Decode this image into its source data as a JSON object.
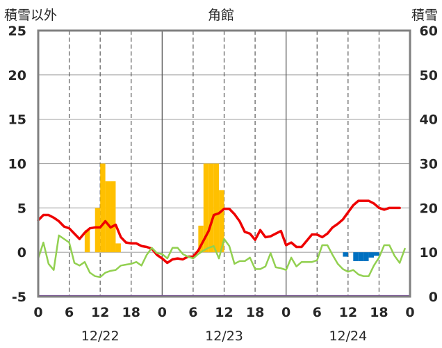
{
  "chart_data": {
    "type": "bar+line",
    "title": "角館",
    "ylabel": "積雪以外",
    "ylabel_right": "積雪",
    "ylim": [
      -5,
      25
    ],
    "ylim_right": [
      0,
      60
    ],
    "y_ticks": [
      "25",
      "20",
      "15",
      "10",
      "5",
      "0",
      "-5"
    ],
    "y_ticks_right": [
      "60",
      "50",
      "40",
      "30",
      "20",
      "10",
      "0"
    ],
    "x_range_hours": [
      0,
      72
    ],
    "x_tick_hours": [
      0,
      6,
      12,
      18,
      24,
      30,
      36,
      42,
      48,
      54,
      60,
      66,
      72
    ],
    "x_tick_labels": [
      "0",
      "6",
      "12",
      "18",
      "0",
      "6",
      "12",
      "18",
      "0",
      "6",
      "12",
      "18",
      "0"
    ],
    "day_labels": [
      "12/22",
      "12/23",
      "12/24"
    ],
    "colors": {
      "red": "#ee0000",
      "green": "#92d050",
      "gold": "#ffc000",
      "blue": "#0070c0",
      "purple": "#7030a0",
      "frame": "#808080"
    },
    "series": [
      {
        "kind": "bar",
        "color": "#ffc000",
        "bars": [
          {
            "hour": 10,
            "value": 2.5
          },
          {
            "hour": 11,
            "value": 0
          },
          {
            "hour": 12,
            "value": 5
          },
          {
            "hour": 13,
            "value": 10
          },
          {
            "hour": 14,
            "value": 8
          },
          {
            "hour": 15,
            "value": 8
          },
          {
            "hour": 16,
            "value": 1
          },
          {
            "hour": 32,
            "value": 3
          },
          {
            "hour": 33,
            "value": 10
          },
          {
            "hour": 34,
            "value": 10
          },
          {
            "hour": 35,
            "value": 10
          },
          {
            "hour": 36,
            "value": 7
          }
        ]
      },
      {
        "kind": "bar",
        "color": "#0070c0",
        "bars": [
          {
            "hour": 60,
            "value": -0.5
          },
          {
            "hour": 62,
            "value": -1
          },
          {
            "hour": 63,
            "value": -1
          },
          {
            "hour": 64,
            "value": -1
          },
          {
            "hour": 65,
            "value": -0.6
          },
          {
            "hour": 66,
            "value": -0.4
          }
        ]
      },
      {
        "kind": "line",
        "color": "#ee0000",
        "points": [
          [
            0,
            3.6
          ],
          [
            1,
            4.2
          ],
          [
            2,
            4.2
          ],
          [
            3,
            3.9
          ],
          [
            4,
            3.5
          ],
          [
            5,
            2.9
          ],
          [
            6,
            2.7
          ],
          [
            7,
            2.1
          ],
          [
            8,
            1.5
          ],
          [
            9,
            2.2
          ],
          [
            10,
            2.7
          ],
          [
            11,
            2.8
          ],
          [
            12,
            2.8
          ],
          [
            13,
            3.5
          ],
          [
            14,
            2.8
          ],
          [
            15,
            3.1
          ],
          [
            16,
            1.7
          ],
          [
            17,
            1.1
          ],
          [
            18,
            1.0
          ],
          [
            19,
            1.0
          ],
          [
            20,
            0.7
          ],
          [
            21,
            0.6
          ],
          [
            22,
            0.4
          ],
          [
            23,
            -0.3
          ],
          [
            24,
            -0.7
          ],
          [
            25,
            -1.2
          ],
          [
            26,
            -0.8
          ],
          [
            27,
            -0.7
          ],
          [
            28,
            -0.8
          ],
          [
            29,
            -0.5
          ],
          [
            30,
            -0.5
          ],
          [
            31,
            0.2
          ],
          [
            32,
            1.3
          ],
          [
            33,
            2.4
          ],
          [
            34,
            4.2
          ],
          [
            35,
            4.4
          ],
          [
            36,
            4.9
          ],
          [
            37,
            4.9
          ],
          [
            38,
            4.3
          ],
          [
            39,
            3.5
          ],
          [
            40,
            2.3
          ],
          [
            41,
            2.1
          ],
          [
            42,
            1.4
          ],
          [
            43,
            2.5
          ],
          [
            44,
            1.7
          ],
          [
            45,
            1.8
          ],
          [
            46,
            2.1
          ],
          [
            47,
            2.4
          ],
          [
            48,
            0.8
          ],
          [
            49,
            1.1
          ],
          [
            50,
            0.6
          ],
          [
            51,
            0.6
          ],
          [
            52,
            1.3
          ],
          [
            53,
            2.0
          ],
          [
            54,
            2.0
          ],
          [
            55,
            1.7
          ],
          [
            56,
            2.1
          ],
          [
            57,
            2.8
          ],
          [
            58,
            3.2
          ],
          [
            59,
            3.7
          ],
          [
            60,
            4.5
          ],
          [
            61,
            5.3
          ],
          [
            62,
            5.8
          ],
          [
            63,
            5.8
          ],
          [
            64,
            5.8
          ],
          [
            65,
            5.5
          ],
          [
            66,
            5.0
          ],
          [
            67,
            4.8
          ],
          [
            68,
            5.0
          ],
          [
            69,
            5.0
          ],
          [
            70,
            5.0
          ]
        ]
      },
      {
        "kind": "line",
        "color": "#92d050",
        "points": [
          [
            0,
            -0.7
          ],
          [
            1,
            1.1
          ],
          [
            2,
            -1.3
          ],
          [
            3,
            -2.0
          ],
          [
            4,
            1.9
          ],
          [
            5,
            1.5
          ],
          [
            6,
            1.1
          ],
          [
            7,
            -1.2
          ],
          [
            8,
            -1.5
          ],
          [
            9,
            -1.1
          ],
          [
            10,
            -2.3
          ],
          [
            11,
            -2.7
          ],
          [
            12,
            -2.8
          ],
          [
            13,
            -2.3
          ],
          [
            14,
            -2.1
          ],
          [
            15,
            -2.0
          ],
          [
            16,
            -1.5
          ],
          [
            17,
            -1.4
          ],
          [
            18,
            -1.3
          ],
          [
            19,
            -1.1
          ],
          [
            20,
            -1.5
          ],
          [
            21,
            -0.3
          ],
          [
            22,
            0.5
          ],
          [
            23,
            -0.1
          ],
          [
            24,
            -0.2
          ],
          [
            25,
            -0.7
          ],
          [
            26,
            0.5
          ],
          [
            27,
            0.5
          ],
          [
            28,
            -0.2
          ],
          [
            29,
            -0.5
          ],
          [
            30,
            -0.7
          ],
          [
            31,
            -0.2
          ],
          [
            32,
            0.2
          ],
          [
            33,
            0.5
          ],
          [
            34,
            0.7
          ],
          [
            35,
            -0.7
          ],
          [
            36,
            1.5
          ],
          [
            37,
            0.7
          ],
          [
            38,
            -1.3
          ],
          [
            39,
            -1.0
          ],
          [
            40,
            -1.0
          ],
          [
            41,
            -0.6
          ],
          [
            42,
            -1.9
          ],
          [
            43,
            -1.9
          ],
          [
            44,
            -1.6
          ],
          [
            45,
            -0.1
          ],
          [
            46,
            -1.7
          ],
          [
            47,
            -1.8
          ],
          [
            48,
            -2.0
          ],
          [
            49,
            -0.6
          ],
          [
            50,
            -1.6
          ],
          [
            51,
            -1.1
          ],
          [
            52,
            -1.1
          ],
          [
            53,
            -1.1
          ],
          [
            54,
            -0.9
          ],
          [
            55,
            0.8
          ],
          [
            56,
            0.8
          ],
          [
            57,
            -0.3
          ],
          [
            58,
            -1.3
          ],
          [
            59,
            -1.9
          ],
          [
            60,
            -2.2
          ],
          [
            61,
            -2.0
          ],
          [
            62,
            -2.5
          ],
          [
            63,
            -2.7
          ],
          [
            64,
            -2.7
          ],
          [
            65,
            -1.5
          ],
          [
            66,
            -0.6
          ],
          [
            67,
            0.8
          ],
          [
            68,
            0.8
          ],
          [
            69,
            -0.4
          ],
          [
            70,
            -1.2
          ],
          [
            71,
            0.4
          ]
        ]
      },
      {
        "kind": "line",
        "color": "#7030a0",
        "points": [
          [
            0,
            -4.95
          ],
          [
            72,
            -4.95
          ]
        ]
      }
    ]
  }
}
